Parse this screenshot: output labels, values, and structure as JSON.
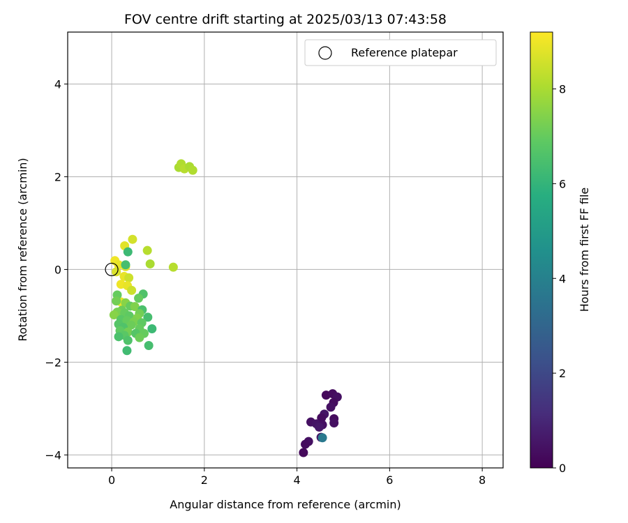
{
  "chart_data": {
    "type": "scatter",
    "title": "FOV centre drift starting at 2025/03/13 07:43:58",
    "xlabel": "Angular distance from reference (arcmin)",
    "ylabel": "Rotation from reference (arcmin)",
    "xlim": [
      -0.95,
      8.45
    ],
    "ylim": [
      -4.28,
      5.12
    ],
    "xticks": [
      0,
      2,
      4,
      6,
      8
    ],
    "yticks": [
      -4,
      -2,
      0,
      2,
      4
    ],
    "grid": true,
    "legend": {
      "position": "top-right",
      "label": "Reference platepar"
    },
    "reference_point": {
      "x": 0,
      "y": 0
    },
    "colorbar": {
      "label": "Hours from first FF file",
      "colormap": "viridis",
      "range": [
        0,
        9.2
      ],
      "ticks": [
        0,
        2,
        4,
        6,
        8
      ]
    },
    "points": [
      {
        "x": 4.63,
        "y": -2.71,
        "c": 0.2
      },
      {
        "x": 4.77,
        "y": -2.68,
        "c": 0.3
      },
      {
        "x": 4.87,
        "y": -2.75,
        "c": 0.4
      },
      {
        "x": 4.79,
        "y": -2.87,
        "c": 0.3
      },
      {
        "x": 4.73,
        "y": -2.97,
        "c": 0.4
      },
      {
        "x": 4.59,
        "y": -3.12,
        "c": 0.5
      },
      {
        "x": 4.53,
        "y": -3.2,
        "c": 0.3
      },
      {
        "x": 4.8,
        "y": -3.22,
        "c": 0.3
      },
      {
        "x": 4.8,
        "y": -3.31,
        "c": 0.4
      },
      {
        "x": 4.3,
        "y": -3.29,
        "c": 0.4
      },
      {
        "x": 4.42,
        "y": -3.33,
        "c": 0.5
      },
      {
        "x": 4.55,
        "y": -3.35,
        "c": 0.4
      },
      {
        "x": 4.48,
        "y": -3.4,
        "c": 0.6
      },
      {
        "x": 4.52,
        "y": -3.62,
        "c": 0.5
      },
      {
        "x": 4.55,
        "y": -3.63,
        "c": 3.7
      },
      {
        "x": 4.25,
        "y": -3.71,
        "c": 0.4
      },
      {
        "x": 4.18,
        "y": -3.77,
        "c": 0.3
      },
      {
        "x": 4.14,
        "y": -3.95,
        "c": 0.2
      },
      {
        "x": 1.45,
        "y": 2.2,
        "c": 8.0
      },
      {
        "x": 1.5,
        "y": 2.28,
        "c": 8.1
      },
      {
        "x": 1.57,
        "y": 2.17,
        "c": 8.2
      },
      {
        "x": 1.68,
        "y": 2.22,
        "c": 8.0
      },
      {
        "x": 1.75,
        "y": 2.14,
        "c": 8.1
      },
      {
        "x": 0.45,
        "y": 0.65,
        "c": 8.6
      },
      {
        "x": 0.28,
        "y": 0.51,
        "c": 8.8
      },
      {
        "x": 0.77,
        "y": 0.41,
        "c": 8.2
      },
      {
        "x": 0.83,
        "y": 0.12,
        "c": 8.0
      },
      {
        "x": 1.33,
        "y": 0.05,
        "c": 8.2
      },
      {
        "x": 0.07,
        "y": 0.19,
        "c": 9.0
      },
      {
        "x": 0.15,
        "y": 0.1,
        "c": 8.9
      },
      {
        "x": 0.3,
        "y": 0.06,
        "c": 8.8
      },
      {
        "x": 0.1,
        "y": -0.05,
        "c": 8.7
      },
      {
        "x": 0.27,
        "y": -0.15,
        "c": 8.9
      },
      {
        "x": 0.37,
        "y": -0.18,
        "c": 8.5
      },
      {
        "x": 0.2,
        "y": -0.32,
        "c": 9.0
      },
      {
        "x": 0.34,
        "y": -0.35,
        "c": 8.9
      },
      {
        "x": 0.43,
        "y": -0.45,
        "c": 8.5
      },
      {
        "x": 0.2,
        "y": -0.7,
        "c": 8.9
      },
      {
        "x": 0.3,
        "y": 0.1,
        "c": 6.4
      },
      {
        "x": 0.35,
        "y": 0.38,
        "c": 6.2
      },
      {
        "x": 0.12,
        "y": -0.55,
        "c": 7.0
      },
      {
        "x": 0.68,
        "y": -0.53,
        "c": 6.6
      },
      {
        "x": 0.58,
        "y": -0.62,
        "c": 7.0
      },
      {
        "x": 0.1,
        "y": -0.68,
        "c": 7.2
      },
      {
        "x": 0.3,
        "y": -0.72,
        "c": 7.5
      },
      {
        "x": 0.4,
        "y": -0.79,
        "c": 7.0
      },
      {
        "x": 0.5,
        "y": -0.8,
        "c": 7.4
      },
      {
        "x": 0.22,
        "y": -0.88,
        "c": 7.1
      },
      {
        "x": 0.66,
        "y": -0.87,
        "c": 6.5
      },
      {
        "x": 0.12,
        "y": -0.92,
        "c": 7.3
      },
      {
        "x": 0.28,
        "y": -0.94,
        "c": 7.0
      },
      {
        "x": 0.05,
        "y": -0.98,
        "c": 7.5
      },
      {
        "x": 0.38,
        "y": -1.0,
        "c": 6.9
      },
      {
        "x": 0.6,
        "y": -0.95,
        "c": 7.2
      },
      {
        "x": 0.55,
        "y": -1.05,
        "c": 7.4
      },
      {
        "x": 0.78,
        "y": -1.03,
        "c": 6.4
      },
      {
        "x": 0.2,
        "y": -1.08,
        "c": 6.8
      },
      {
        "x": 0.33,
        "y": -1.1,
        "c": 7.0
      },
      {
        "x": 0.48,
        "y": -1.13,
        "c": 7.3
      },
      {
        "x": 0.65,
        "y": -1.15,
        "c": 6.9
      },
      {
        "x": 0.15,
        "y": -1.18,
        "c": 6.7
      },
      {
        "x": 0.42,
        "y": -1.2,
        "c": 7.1
      },
      {
        "x": 0.25,
        "y": -1.25,
        "c": 6.6
      },
      {
        "x": 0.6,
        "y": -1.28,
        "c": 7.0
      },
      {
        "x": 0.87,
        "y": -1.28,
        "c": 6.2
      },
      {
        "x": 0.18,
        "y": -1.32,
        "c": 6.9
      },
      {
        "x": 0.35,
        "y": -1.35,
        "c": 7.2
      },
      {
        "x": 0.52,
        "y": -1.38,
        "c": 6.7
      },
      {
        "x": 0.7,
        "y": -1.38,
        "c": 7.0
      },
      {
        "x": 0.27,
        "y": -1.42,
        "c": 6.8
      },
      {
        "x": 0.15,
        "y": -1.45,
        "c": 6.5
      },
      {
        "x": 0.6,
        "y": -1.47,
        "c": 7.1
      },
      {
        "x": 0.35,
        "y": -1.53,
        "c": 6.6
      },
      {
        "x": 0.8,
        "y": -1.64,
        "c": 6.4
      },
      {
        "x": 0.33,
        "y": -1.75,
        "c": 6.3
      }
    ]
  }
}
